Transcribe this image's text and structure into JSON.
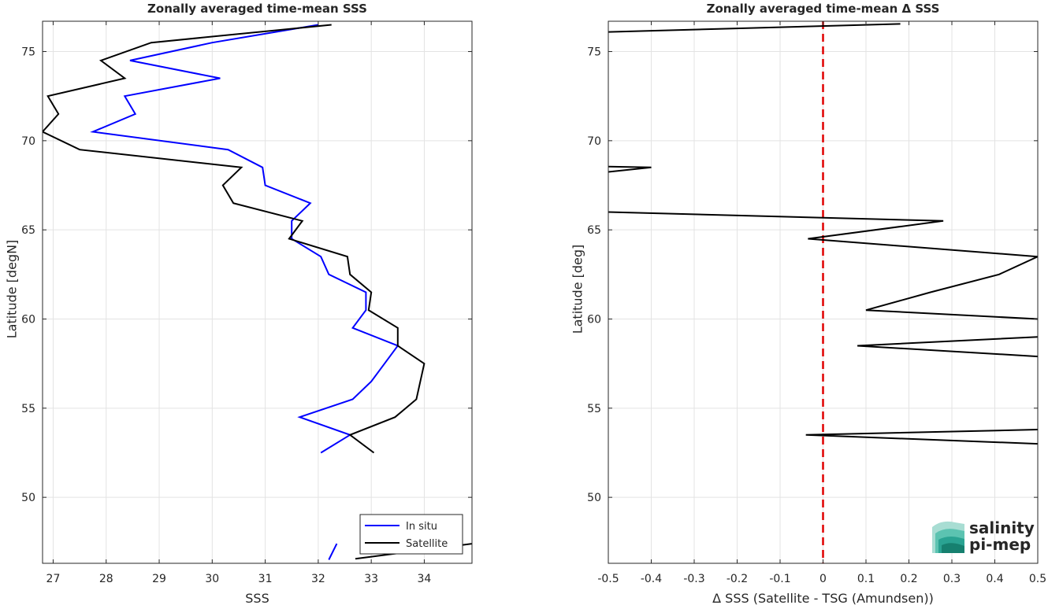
{
  "chart_data": [
    {
      "type": "line",
      "title": "Zonally averaged time-mean SSS",
      "xlabel": "SSS",
      "ylabel": "Latitude [degN]",
      "xlim": [
        26.8,
        34.9
      ],
      "ylim": [
        46.3,
        76.7
      ],
      "x_ticks": [
        27,
        28,
        29,
        30,
        31,
        32,
        33,
        34
      ],
      "y_ticks": [
        50,
        55,
        60,
        65,
        70,
        75
      ],
      "grid": true,
      "legend": {
        "position": "bottom-right",
        "entries": [
          "In situ",
          "Satellite"
        ]
      },
      "series": [
        {
          "name": "In situ",
          "color": "#0000ff",
          "segments": [
            [
              [
                32.05,
                52.5
              ],
              [
                32.6,
                53.5
              ],
              [
                31.65,
                54.5
              ],
              [
                32.65,
                55.5
              ],
              [
                33.0,
                56.5
              ],
              [
                33.25,
                57.5
              ],
              [
                33.5,
                58.5
              ],
              [
                32.65,
                59.5
              ],
              [
                32.9,
                60.5
              ],
              [
                32.9,
                61.5
              ],
              [
                32.2,
                62.5
              ],
              [
                32.05,
                63.5
              ],
              [
                31.5,
                64.5
              ],
              [
                31.5,
                65.5
              ],
              [
                31.85,
                66.5
              ],
              [
                31.0,
                67.5
              ],
              [
                30.95,
                68.5
              ],
              [
                30.3,
                69.5
              ],
              [
                27.75,
                70.5
              ],
              [
                28.55,
                71.5
              ],
              [
                28.35,
                72.5
              ],
              [
                30.15,
                73.5
              ],
              [
                28.45,
                74.5
              ],
              [
                30.0,
                75.5
              ],
              [
                32.0,
                76.5
              ]
            ],
            [
              [
                32.2,
                46.5
              ],
              [
                32.35,
                47.4
              ]
            ]
          ]
        },
        {
          "name": "Satellite",
          "color": "#000000",
          "segments": [
            [
              [
                33.05,
                52.5
              ],
              [
                32.6,
                53.5
              ],
              [
                33.45,
                54.5
              ],
              [
                33.85,
                55.5
              ],
              [
                34.0,
                57.5
              ],
              [
                33.5,
                58.5
              ],
              [
                33.5,
                59.5
              ],
              [
                32.95,
                60.5
              ],
              [
                33.0,
                61.5
              ],
              [
                32.6,
                62.5
              ],
              [
                32.55,
                63.5
              ],
              [
                31.45,
                64.5
              ],
              [
                31.7,
                65.5
              ],
              [
                30.4,
                66.5
              ],
              [
                30.2,
                67.5
              ],
              [
                30.55,
                68.5
              ],
              [
                27.5,
                69.5
              ],
              [
                26.8,
                70.5
              ],
              [
                27.1,
                71.5
              ],
              [
                26.9,
                72.5
              ],
              [
                28.35,
                73.5
              ],
              [
                27.9,
                74.5
              ],
              [
                28.85,
                75.5
              ],
              [
                32.25,
                76.5
              ]
            ],
            [
              [
                32.7,
                46.55
              ],
              [
                34.9,
                47.4
              ]
            ]
          ]
        }
      ]
    },
    {
      "type": "line",
      "title": "Zonally averaged time-mean Δ SSS",
      "xlabel": "Δ SSS (Satellite - TSG (Amundsen))",
      "ylabel": "Latitude [deg]",
      "xlim": [
        -0.5,
        0.5
      ],
      "ylim": [
        46.3,
        76.7
      ],
      "x_ticks": [
        -0.5,
        -0.4,
        -0.3,
        -0.2,
        -0.1,
        0,
        0.1,
        0.2,
        0.3,
        0.4,
        0.5
      ],
      "x_tick_labels": [
        "-0.5",
        "-0.4",
        "-0.3",
        "-0.2",
        "-0.1",
        "0",
        "0.1",
        "0.2",
        "0.3",
        "0.4",
        "0.5"
      ],
      "y_ticks": [
        50,
        55,
        60,
        65,
        70,
        75
      ],
      "grid": true,
      "reference_line": {
        "x": 0,
        "color": "#e00000",
        "style": "dashed"
      },
      "series": [
        {
          "color": "#000000",
          "segments": [
            [
              [
                0.5,
                53.0
              ],
              [
                -0.04,
                53.5
              ],
              [
                0.5,
                53.8
              ]
            ],
            [
              [
                0.5,
                57.9
              ],
              [
                0.08,
                58.5
              ],
              [
                0.5,
                59.0
              ]
            ],
            [
              [
                0.5,
                60.0
              ],
              [
                0.1,
                60.5
              ],
              [
                0.25,
                61.5
              ],
              [
                0.41,
                62.5
              ],
              [
                0.5,
                63.5
              ],
              [
                -0.035,
                64.5
              ],
              [
                0.28,
                65.5
              ],
              [
                -0.5,
                66.0
              ]
            ],
            [
              [
                -0.5,
                68.25
              ],
              [
                -0.4,
                68.5
              ],
              [
                -0.5,
                68.55
              ]
            ],
            [
              [
                -0.5,
                76.1
              ],
              [
                0.18,
                76.55
              ]
            ]
          ]
        }
      ]
    }
  ],
  "watermark": {
    "line1": "salinity",
    "line2": "pi-mep",
    "color": "#2bb0a0"
  }
}
